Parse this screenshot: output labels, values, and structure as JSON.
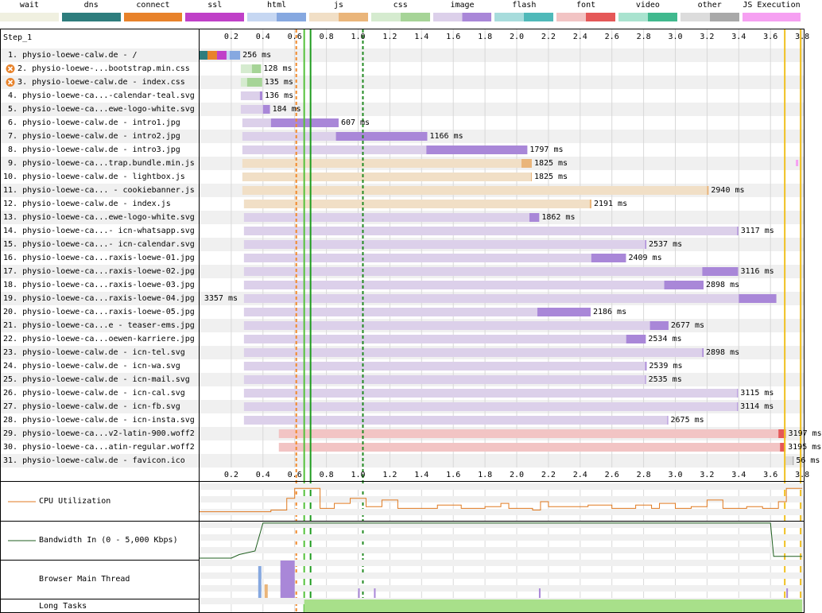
{
  "chart_data": {
    "type": "waterfall",
    "step_label": "Step_1",
    "x_range": [
      0,
      3.8
    ],
    "x_ticks": [
      "0.2",
      "0.4",
      "0.6",
      "0.8",
      "1.0",
      "1.2",
      "1.4",
      "1.6",
      "1.8",
      "2.0",
      "2.2",
      "2.4",
      "2.6",
      "2.8",
      "3.0",
      "3.2",
      "3.4",
      "3.6",
      "3.8"
    ],
    "x_tick_label_last": "3.8",
    "legend": [
      {
        "label": "wait",
        "light": "#f0f0e0",
        "dark": "#f0f0e0"
      },
      {
        "label": "dns",
        "light": "#2e7d7d",
        "dark": "#2e7d7d"
      },
      {
        "label": "connect",
        "light": "#e8822a",
        "dark": "#e8822a"
      },
      {
        "label": "ssl",
        "light": "#c040c8",
        "dark": "#c040c8"
      },
      {
        "label": "html",
        "light": "#c6d7f2",
        "dark": "#86a8e0"
      },
      {
        "label": "js",
        "light": "#f1dfc6",
        "dark": "#eab57a"
      },
      {
        "label": "css",
        "light": "#d5ebcf",
        "dark": "#a6d497"
      },
      {
        "label": "image",
        "light": "#dcd0ea",
        "dark": "#a987d8"
      },
      {
        "label": "flash",
        "light": "#a7dcdc",
        "dark": "#4fb9b9"
      },
      {
        "label": "font",
        "light": "#f2c4c4",
        "dark": "#e55858"
      },
      {
        "label": "video",
        "light": "#a9e3cf",
        "dark": "#40b98e"
      },
      {
        "label": "other",
        "light": "#dcdcdc",
        "dark": "#a9a9a9"
      },
      {
        "label": "JS Execution",
        "light": "#f6a0f2",
        "dark": "#f6a0f2"
      }
    ],
    "requests": [
      {
        "n": "1.",
        "label": "physio-loewe-calw.de - /",
        "type": "html",
        "start": 0.0,
        "ttfb": 0.19,
        "end": 0.256,
        "duration": "256 ms",
        "warn": false
      },
      {
        "n": "2.",
        "label": "physio-loewe-...bootstrap.min.css",
        "type": "css",
        "start": 0.26,
        "ttfb": 0.33,
        "end": 0.388,
        "duration": "128 ms",
        "warn": true
      },
      {
        "n": "3.",
        "label": "physio-loewe-calw.de - index.css",
        "type": "css",
        "start": 0.26,
        "ttfb": 0.3,
        "end": 0.395,
        "duration": "135 ms",
        "warn": true
      },
      {
        "n": "4.",
        "label": "physio-loewe-ca...-calendar-teal.svg",
        "type": "image",
        "start": 0.26,
        "ttfb": 0.38,
        "end": 0.396,
        "duration": "136 ms",
        "warn": false
      },
      {
        "n": "5.",
        "label": "physio-loewe-ca...ewe-logo-white.svg",
        "type": "image",
        "start": 0.26,
        "ttfb": 0.4,
        "end": 0.444,
        "duration": "184 ms",
        "warn": false
      },
      {
        "n": "6.",
        "label": "physio-loewe-calw.de - intro1.jpg",
        "type": "image",
        "start": 0.27,
        "ttfb": 0.45,
        "end": 0.877,
        "duration": "607 ms",
        "warn": false
      },
      {
        "n": "7.",
        "label": "physio-loewe-calw.de - intro2.jpg",
        "type": "image",
        "start": 0.27,
        "ttfb": 0.86,
        "end": 1.436,
        "duration": "1166 ms",
        "warn": false
      },
      {
        "n": "8.",
        "label": "physio-loewe-calw.de - intro3.jpg",
        "type": "image",
        "start": 0.27,
        "ttfb": 1.43,
        "end": 2.067,
        "duration": "1797 ms",
        "warn": false
      },
      {
        "n": "9.",
        "label": "physio-loewe-ca...trap.bundle.min.js",
        "type": "js",
        "start": 0.27,
        "ttfb": 2.03,
        "end": 2.095,
        "duration": "1825 ms",
        "warn": false
      },
      {
        "n": "10.",
        "label": "physio-loewe-calw.de - lightbox.js",
        "type": "js",
        "start": 0.27,
        "ttfb": 2.09,
        "end": 2.095,
        "duration": "1825 ms",
        "warn": false
      },
      {
        "n": "11.",
        "label": "physio-loewe-ca... - cookiebanner.js",
        "type": "js",
        "start": 0.27,
        "ttfb": 3.2,
        "end": 3.21,
        "duration": "2940 ms",
        "warn": false
      },
      {
        "n": "12.",
        "label": "physio-loewe-calw.de - index.js",
        "type": "js",
        "start": 0.28,
        "ttfb": 2.46,
        "end": 2.471,
        "duration": "2191 ms",
        "warn": false
      },
      {
        "n": "13.",
        "label": "physio-loewe-ca...ewe-logo-white.svg",
        "type": "image",
        "start": 0.28,
        "ttfb": 2.08,
        "end": 2.142,
        "duration": "1862 ms",
        "warn": false
      },
      {
        "n": "14.",
        "label": "physio-loewe-ca...- icn-whatsapp.svg",
        "type": "image",
        "start": 0.28,
        "ttfb": 3.39,
        "end": 3.397,
        "duration": "3117 ms",
        "warn": false
      },
      {
        "n": "15.",
        "label": "physio-loewe-ca...- icn-calendar.svg",
        "type": "image",
        "start": 0.28,
        "ttfb": 2.81,
        "end": 2.817,
        "duration": "2537 ms",
        "warn": false
      },
      {
        "n": "16.",
        "label": "physio-loewe-ca...raxis-loewe-01.jpg",
        "type": "image",
        "start": 0.28,
        "ttfb": 2.47,
        "end": 2.689,
        "duration": "2409 ms",
        "warn": false
      },
      {
        "n": "17.",
        "label": "physio-loewe-ca...raxis-loewe-02.jpg",
        "type": "image",
        "start": 0.28,
        "ttfb": 3.17,
        "end": 3.396,
        "duration": "3116 ms",
        "warn": false
      },
      {
        "n": "18.",
        "label": "physio-loewe-ca...raxis-loewe-03.jpg",
        "type": "image",
        "start": 0.28,
        "ttfb": 2.93,
        "end": 3.178,
        "duration": "2898 ms",
        "warn": false
      },
      {
        "n": "19.",
        "label": "physio-loewe-ca...raxis-loewe-04.jpg",
        "type": "image",
        "start": 0.28,
        "ttfb": 3.4,
        "end": 3.637,
        "duration": "3357 ms",
        "warn": false
      },
      {
        "n": "20.",
        "label": "physio-loewe-ca...raxis-loewe-05.jpg",
        "type": "image",
        "start": 0.28,
        "ttfb": 2.13,
        "end": 2.466,
        "duration": "2186 ms",
        "warn": false
      },
      {
        "n": "21.",
        "label": "physio-loewe-ca...e - teaser-ems.jpg",
        "type": "image",
        "start": 0.28,
        "ttfb": 2.84,
        "end": 2.957,
        "duration": "2677 ms",
        "warn": false
      },
      {
        "n": "22.",
        "label": "physio-loewe-ca...oewen-karriere.jpg",
        "type": "image",
        "start": 0.28,
        "ttfb": 2.69,
        "end": 2.814,
        "duration": "2534 ms",
        "warn": false
      },
      {
        "n": "23.",
        "label": "physio-loewe-calw.de - icn-tel.svg",
        "type": "image",
        "start": 0.28,
        "ttfb": 3.17,
        "end": 3.178,
        "duration": "2898 ms",
        "warn": false
      },
      {
        "n": "24.",
        "label": "physio-loewe-calw.de - icn-wa.svg",
        "type": "image",
        "start": 0.28,
        "ttfb": 2.81,
        "end": 2.819,
        "duration": "2539 ms",
        "warn": false
      },
      {
        "n": "25.",
        "label": "physio-loewe-calw.de - icn-mail.svg",
        "type": "image",
        "start": 0.28,
        "ttfb": 2.81,
        "end": 2.815,
        "duration": "2535 ms",
        "warn": false
      },
      {
        "n": "26.",
        "label": "physio-loewe-calw.de - icn-cal.svg",
        "type": "image",
        "start": 0.28,
        "ttfb": 3.39,
        "end": 3.395,
        "duration": "3115 ms",
        "warn": false
      },
      {
        "n": "27.",
        "label": "physio-loewe-calw.de - icn-fb.svg",
        "type": "image",
        "start": 0.28,
        "ttfb": 3.39,
        "end": 3.394,
        "duration": "3114 ms",
        "warn": false
      },
      {
        "n": "28.",
        "label": "physio-loewe-calw.de - icn-insta.svg",
        "type": "image",
        "start": 0.28,
        "ttfb": 2.95,
        "end": 2.955,
        "duration": "2675 ms",
        "warn": false
      },
      {
        "n": "29.",
        "label": "physio-loewe-ca...v2-latin-900.woff2",
        "type": "font",
        "start": 0.5,
        "ttfb": 3.65,
        "end": 3.697,
        "duration": "3197 ms",
        "warn": false
      },
      {
        "n": "30.",
        "label": "physio-loewe-ca...atin-regular.woff2",
        "type": "font",
        "start": 0.5,
        "ttfb": 3.66,
        "end": 3.695,
        "duration": "3195 ms",
        "warn": false
      },
      {
        "n": "31.",
        "label": "physio-loewe-calw.de - favicon.ico",
        "type": "other",
        "start": 3.69,
        "ttfb": 3.74,
        "end": 3.746,
        "duration": "56 ms",
        "warn": false
      }
    ],
    "markers": [
      {
        "t": 0.61,
        "color": "#f28a2b",
        "style": "dashed"
      },
      {
        "t": 0.66,
        "color": "#54c13a",
        "style": "solid"
      },
      {
        "t": 0.7,
        "color": "#1f9c1f",
        "style": "solid"
      },
      {
        "t": 1.03,
        "color": "#228b22",
        "style": "dashed"
      },
      {
        "t": 3.69,
        "color": "#f0c020",
        "style": "solid"
      },
      {
        "t": 3.79,
        "color": "#f0c020",
        "style": "solid"
      }
    ],
    "js_exec_marks": [
      3.76
    ],
    "cpu_label": "CPU Utilization",
    "cpu_points": [
      [
        0,
        0.2
      ],
      [
        0.45,
        0.25
      ],
      [
        0.55,
        0.6
      ],
      [
        0.6,
        0.9
      ],
      [
        0.75,
        0.9
      ],
      [
        0.76,
        0.3
      ],
      [
        0.85,
        0.45
      ],
      [
        0.95,
        0.6
      ],
      [
        1.05,
        0.35
      ],
      [
        1.15,
        0.55
      ],
      [
        1.25,
        0.3
      ],
      [
        1.35,
        0.3
      ],
      [
        1.5,
        0.4
      ],
      [
        1.65,
        0.3
      ],
      [
        1.8,
        0.35
      ],
      [
        1.9,
        0.45
      ],
      [
        1.95,
        0.3
      ],
      [
        2.1,
        0.25
      ],
      [
        2.15,
        0.5
      ],
      [
        2.2,
        0.35
      ],
      [
        2.35,
        0.35
      ],
      [
        2.45,
        0.4
      ],
      [
        2.6,
        0.3
      ],
      [
        2.75,
        0.4
      ],
      [
        2.85,
        0.3
      ],
      [
        2.9,
        0.45
      ],
      [
        3.0,
        0.3
      ],
      [
        3.1,
        0.35
      ],
      [
        3.2,
        0.55
      ],
      [
        3.3,
        0.3
      ],
      [
        3.45,
        0.35
      ],
      [
        3.55,
        0.3
      ],
      [
        3.65,
        0.5
      ],
      [
        3.7,
        0.9
      ],
      [
        3.8,
        0.9
      ]
    ],
    "bandwidth_label": "Bandwidth In (0 - 5,000 Kbps)",
    "bandwidth_points": [
      [
        0,
        0
      ],
      [
        0.2,
        0.0
      ],
      [
        0.25,
        0.1
      ],
      [
        0.35,
        0.2
      ],
      [
        0.4,
        0.98
      ],
      [
        3.6,
        0.98
      ],
      [
        3.62,
        0.05
      ],
      [
        3.8,
        0.05
      ]
    ],
    "main_thread_label": "Browser Main Thread",
    "long_tasks_label": "Long Tasks",
    "long_tasks": [
      [
        0.66,
        3.8
      ]
    ]
  },
  "colors": {
    "row_alt": "#f0f0f0",
    "long_task": "#a8e08a",
    "cpu_line": "#e07a20",
    "bandwidth_line": "#1f5f1f",
    "grid": "#d8d8d8",
    "warn": "#e8822a"
  }
}
